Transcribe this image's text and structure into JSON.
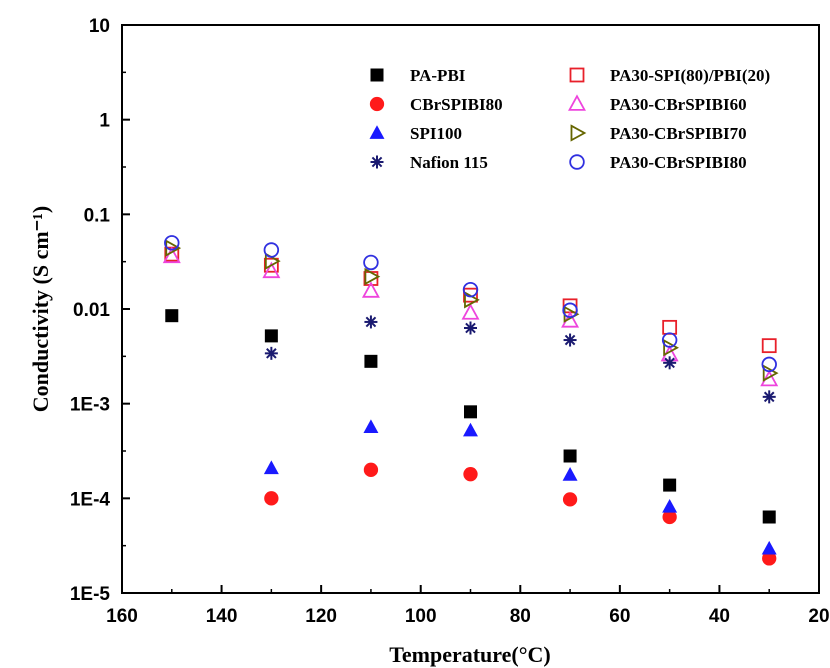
{
  "chart_data": {
    "type": "scatter",
    "xlabel": "Temperature(°C)",
    "ylabel": "Conductivity (S cm⁻¹)",
    "xlim": [
      160,
      20
    ],
    "ylim": [
      1e-05,
      10
    ],
    "y_scale": "log",
    "x_ticks": [
      160,
      140,
      120,
      100,
      80,
      60,
      40,
      20
    ],
    "x_tick_labels": [
      "160",
      "140",
      "120",
      "100",
      "80",
      "60",
      "40",
      "20"
    ],
    "y_ticks": [
      1e-05,
      0.0001,
      0.001,
      0.01,
      0.1,
      1,
      10
    ],
    "y_tick_labels": [
      "1E-5",
      "1E-4",
      "1E-3",
      "0.01",
      "0.1",
      "1",
      "10"
    ],
    "grid": false,
    "legend_position": "top-right",
    "series": [
      {
        "name": "PA-PBI",
        "marker": "square-filled",
        "color": "#000000",
        "x": [
          150,
          130,
          110,
          90,
          70,
          50,
          30
        ],
        "y": [
          0.0085,
          0.0052,
          0.0028,
          0.00082,
          0.00028,
          0.000138,
          6.35e-05
        ]
      },
      {
        "name": "CBrSPIBI80",
        "marker": "circle-filled",
        "color": "#ff1a1a",
        "x": [
          130,
          110,
          90,
          70,
          50,
          30
        ],
        "y": [
          0.0001,
          0.0002,
          0.00018,
          9.75e-05,
          6.35e-05,
          2.32e-05
        ]
      },
      {
        "name": "SPI100",
        "marker": "triangle-filled",
        "color": "#1a1aff",
        "x": [
          130,
          110,
          90,
          70,
          50,
          30
        ],
        "y": [
          0.000208,
          0.000565,
          0.00052,
          0.000177,
          8.15e-05,
          2.94e-05
        ]
      },
      {
        "name": "Nafion 115",
        "marker": "star",
        "color": "#1a1a70",
        "x": [
          130,
          110,
          90,
          70,
          50,
          30
        ],
        "y": [
          0.0034,
          0.0073,
          0.0063,
          0.0047,
          0.0027,
          0.00118
        ]
      },
      {
        "name": "PA30-SPI(80)/PBI(20)",
        "marker": "square-open",
        "color": "#e8202a",
        "x": [
          150,
          130,
          110,
          90,
          70,
          50,
          30
        ],
        "y": [
          0.038,
          0.029,
          0.021,
          0.014,
          0.0108,
          0.0064,
          0.0041
        ]
      },
      {
        "name": "PA30-CBrSPIBI60",
        "marker": "triangle-open",
        "color": "#ee44dd",
        "x": [
          150,
          130,
          110,
          90,
          70,
          50,
          30
        ],
        "y": [
          0.036,
          0.025,
          0.0155,
          0.0091,
          0.0075,
          0.0033,
          0.0018
        ]
      },
      {
        "name": "PA30-CBrSPIBI70",
        "marker": "triangle-right-open",
        "color": "#666600",
        "x": [
          150,
          130,
          110,
          90,
          70,
          50,
          30
        ],
        "y": [
          0.044,
          0.032,
          0.022,
          0.0125,
          0.0088,
          0.0039,
          0.0021
        ]
      },
      {
        "name": "PA30-CBrSPIBI80",
        "marker": "circle-open",
        "color": "#3030e0",
        "x": [
          150,
          130,
          110,
          90,
          70,
          50,
          30
        ],
        "y": [
          0.05,
          0.042,
          0.031,
          0.016,
          0.0097,
          0.0047,
          0.0026
        ]
      }
    ]
  }
}
